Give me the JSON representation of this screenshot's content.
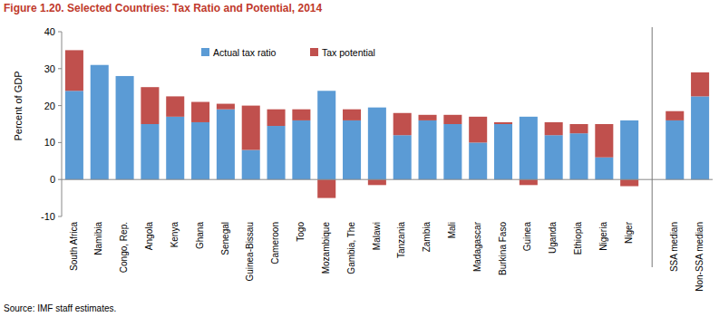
{
  "chart_data": {
    "type": "bar",
    "title": "Figure 1.20. Selected Countries: Tax Ratio and Potential, 2014",
    "y_label": "Percent of GDP",
    "source": "Source: IMF staff estimates.",
    "categories": [
      "South Africa",
      "Namibia",
      "Congo, Rep.",
      "Angola",
      "Kenya",
      "Ghana",
      "Senegal",
      "Guinea-Bissau",
      "Cameroon",
      "Togo",
      "Mozambique",
      "Gambia, The",
      "Malawi",
      "Tanzania",
      "Zambia",
      "Mali",
      "Madagascar",
      "Burkina Faso",
      "Guinea",
      "Uganda",
      "Ethiopia",
      "Nigeria",
      "Niger",
      "SSA median",
      "Non-SSA median"
    ],
    "series": [
      {
        "name": "Actual tax ratio",
        "color": "#5b9bd5",
        "values": [
          24,
          31,
          28,
          15,
          17,
          15.5,
          19,
          8,
          14.5,
          16,
          24,
          16,
          19.5,
          12,
          16,
          15,
          10,
          15,
          17,
          12,
          12.5,
          6,
          16,
          16,
          22.5
        ]
      },
      {
        "name": "Tax potential",
        "color": "#c0504d",
        "values": [
          11,
          0,
          0,
          10,
          5.5,
          5.5,
          1.5,
          12,
          4.5,
          3,
          -5,
          3,
          -1.5,
          6,
          1.5,
          2.5,
          7,
          0.5,
          -1.5,
          3.5,
          2.5,
          9,
          -1.8,
          2.5,
          6.5
        ]
      }
    ],
    "stacked": true,
    "legend": "top",
    "grid": false,
    "ylim": [
      -10,
      40
    ],
    "yticks": [
      -10,
      0,
      10,
      20,
      30,
      40
    ]
  }
}
